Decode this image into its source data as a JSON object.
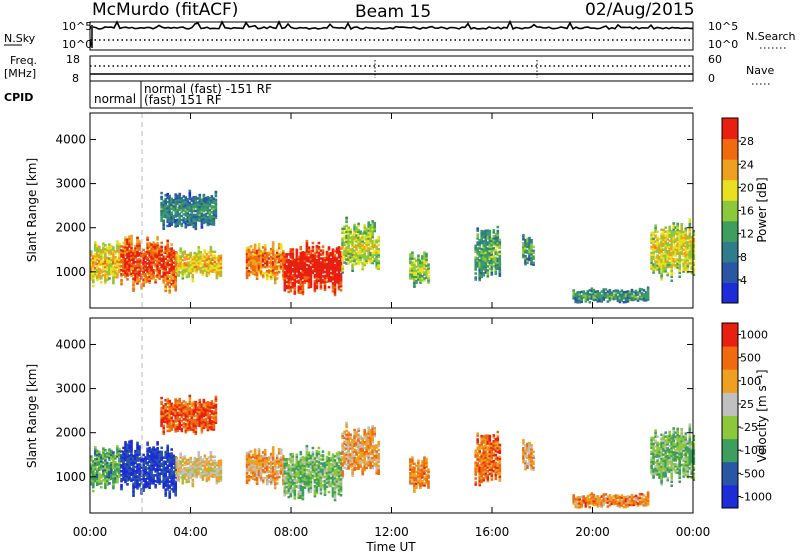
{
  "header": {
    "station": "McMurdo (fitACF)",
    "beam": "Beam 15",
    "date": "02/Aug/2015"
  },
  "top_panels": {
    "nsky_label": "N.Sky",
    "nsearch_label": "N.Search",
    "noise_ticks_left": [
      "10^5",
      "10^0"
    ],
    "noise_ticks_right": [
      "10^5",
      "10^0"
    ],
    "freq_label": "Freq.",
    "freq_unit": "[MHz]",
    "freq_ticks": [
      "18",
      "8"
    ],
    "nave_label": "Nave",
    "nave_ticks": [
      "60",
      "0"
    ],
    "cpid_label": "CPID",
    "cpid_segments": [
      "normal",
      "normal (fast) -151 RF",
      "(fast) 151 RF"
    ]
  },
  "chart_data": [
    {
      "type": "heatmap",
      "name": "power-panel",
      "ylabel": "Slant Range [km]",
      "yticks": [
        1000,
        2000,
        3000,
        4000
      ],
      "ylim": [
        180,
        4600
      ],
      "xlim": [
        0,
        24
      ],
      "colorbar": {
        "label": "Power [dB]",
        "ticks": [
          4,
          8,
          12,
          16,
          20,
          24,
          28
        ],
        "range": [
          0,
          32
        ],
        "colors": [
          "#1c2cd6",
          "#2a56a6",
          "#2f7d8a",
          "#3d9e5e",
          "#8cc83c",
          "#e8e020",
          "#f0a020",
          "#f06a10",
          "#e82010"
        ]
      },
      "echo_regions": [
        {
          "t0": 0.0,
          "t1": 1.2,
          "r0": 700,
          "r1": 1700,
          "level": 0.55
        },
        {
          "t0": 1.2,
          "t1": 3.4,
          "r0": 600,
          "r1": 1750,
          "level": 0.78
        },
        {
          "t0": 3.4,
          "t1": 5.2,
          "r0": 850,
          "r1": 1500,
          "level": 0.55
        },
        {
          "t0": 6.2,
          "t1": 7.7,
          "r0": 800,
          "r1": 1600,
          "level": 0.7
        },
        {
          "t0": 7.7,
          "t1": 10.0,
          "r0": 500,
          "r1": 1600,
          "level": 0.9
        },
        {
          "t0": 10.0,
          "t1": 11.5,
          "r0": 1000,
          "r1": 2100,
          "level": 0.45
        },
        {
          "t0": 2.8,
          "t1": 5.0,
          "r0": 2000,
          "r1": 2800,
          "level": 0.2
        },
        {
          "t0": 12.7,
          "t1": 13.5,
          "r0": 700,
          "r1": 1400,
          "level": 0.4
        },
        {
          "t0": 15.3,
          "t1": 16.3,
          "r0": 800,
          "r1": 2000,
          "level": 0.3
        },
        {
          "t0": 17.2,
          "t1": 17.6,
          "r0": 1200,
          "r1": 1800,
          "level": 0.3
        },
        {
          "t0": 19.2,
          "t1": 22.2,
          "r0": 300,
          "r1": 600,
          "level": 0.25
        },
        {
          "t0": 22.3,
          "t1": 24.0,
          "r0": 900,
          "r1": 2100,
          "level": 0.5
        }
      ]
    },
    {
      "type": "heatmap",
      "name": "velocity-panel",
      "ylabel": "Slant Range [km]",
      "xlabel": "Time UT",
      "xticks": [
        "00:00",
        "04:00",
        "08:00",
        "12:00",
        "16:00",
        "20:00",
        "00:00"
      ],
      "yticks": [
        1000,
        2000,
        3000,
        4000
      ],
      "ylim": [
        180,
        4600
      ],
      "xlim": [
        0,
        24
      ],
      "colorbar": {
        "label": "Velocity [m s⁻¹]",
        "ticks": [
          "1000",
          "500",
          "100",
          "25",
          "-25",
          "-100",
          "-500",
          "-1000"
        ],
        "colors": [
          "#1c2cd6",
          "#2a56a6",
          "#3d9e5e",
          "#8cc83c",
          "#c0c0c0",
          "#f0a020",
          "#f06a10",
          "#e82010"
        ]
      },
      "echo_regions": [
        {
          "t0": 0.0,
          "t1": 1.2,
          "r0": 700,
          "r1": 1700,
          "level": 0.35
        },
        {
          "t0": 1.2,
          "t1": 3.4,
          "r0": 600,
          "r1": 1750,
          "level": 0.1
        },
        {
          "t0": 3.4,
          "t1": 5.2,
          "r0": 850,
          "r1": 1500,
          "level": 0.6
        },
        {
          "t0": 6.2,
          "t1": 7.7,
          "r0": 800,
          "r1": 1600,
          "level": 0.7
        },
        {
          "t0": 7.7,
          "t1": 10.0,
          "r0": 500,
          "r1": 1600,
          "level": 0.4
        },
        {
          "t0": 10.0,
          "t1": 11.5,
          "r0": 1000,
          "r1": 2100,
          "level": 0.7
        },
        {
          "t0": 2.8,
          "t1": 5.0,
          "r0": 2000,
          "r1": 2800,
          "level": 0.85
        },
        {
          "t0": 12.7,
          "t1": 13.5,
          "r0": 700,
          "r1": 1400,
          "level": 0.75
        },
        {
          "t0": 15.3,
          "t1": 16.3,
          "r0": 800,
          "r1": 2000,
          "level": 0.8
        },
        {
          "t0": 17.2,
          "t1": 17.6,
          "r0": 1200,
          "r1": 1800,
          "level": 0.7
        },
        {
          "t0": 19.2,
          "t1": 22.2,
          "r0": 300,
          "r1": 600,
          "level": 0.75
        },
        {
          "t0": 22.3,
          "t1": 24.0,
          "r0": 900,
          "r1": 2100,
          "level": 0.4
        }
      ]
    }
  ]
}
